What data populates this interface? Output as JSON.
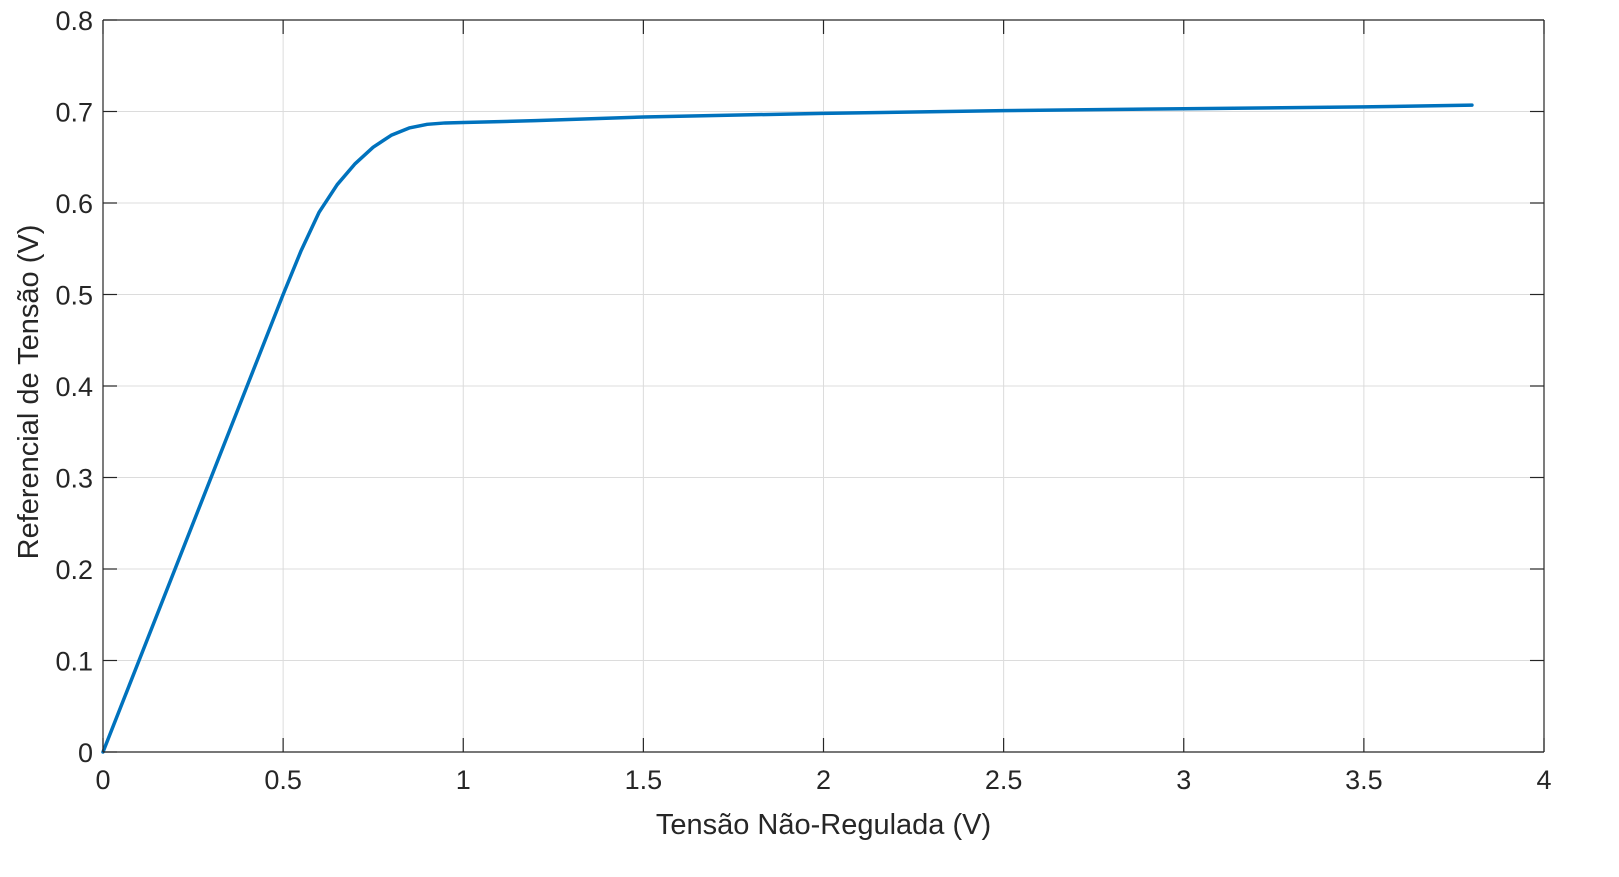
{
  "chart_data": {
    "type": "line",
    "xlabel": "Tensão Não-Regulada (V)",
    "ylabel": "Referencial de Tensão (V)",
    "xlim": [
      0,
      4
    ],
    "ylim": [
      0,
      0.8
    ],
    "x_ticks": [
      0,
      0.5,
      1,
      1.5,
      2,
      2.5,
      3,
      3.5,
      4
    ],
    "x_tick_labels": [
      "0",
      "0.5",
      "1",
      "1.5",
      "2",
      "2.5",
      "3",
      "3.5",
      "4"
    ],
    "y_ticks": [
      0,
      0.1,
      0.2,
      0.3,
      0.4,
      0.5,
      0.6,
      0.7,
      0.8
    ],
    "y_tick_labels": [
      "0",
      "0.1",
      "0.2",
      "0.3",
      "0.4",
      "0.5",
      "0.6",
      "0.7",
      "0.8"
    ],
    "grid": true,
    "series": [
      {
        "color": "#0072BD",
        "x": [
          0,
          0.05,
          0.1,
          0.2,
          0.3,
          0.4,
          0.45,
          0.5,
          0.55,
          0.6,
          0.65,
          0.7,
          0.75,
          0.8,
          0.85,
          0.9,
          0.95,
          1.0,
          1.1,
          1.2,
          1.5,
          2.0,
          2.5,
          3.0,
          3.5,
          3.8
        ],
        "y": [
          0,
          0.05,
          0.1,
          0.2,
          0.3,
          0.4,
          0.45,
          0.5,
          0.548,
          0.59,
          0.62,
          0.643,
          0.661,
          0.674,
          0.682,
          0.686,
          0.6875,
          0.688,
          0.689,
          0.69,
          0.694,
          0.698,
          0.701,
          0.703,
          0.705,
          0.707
        ]
      }
    ]
  }
}
